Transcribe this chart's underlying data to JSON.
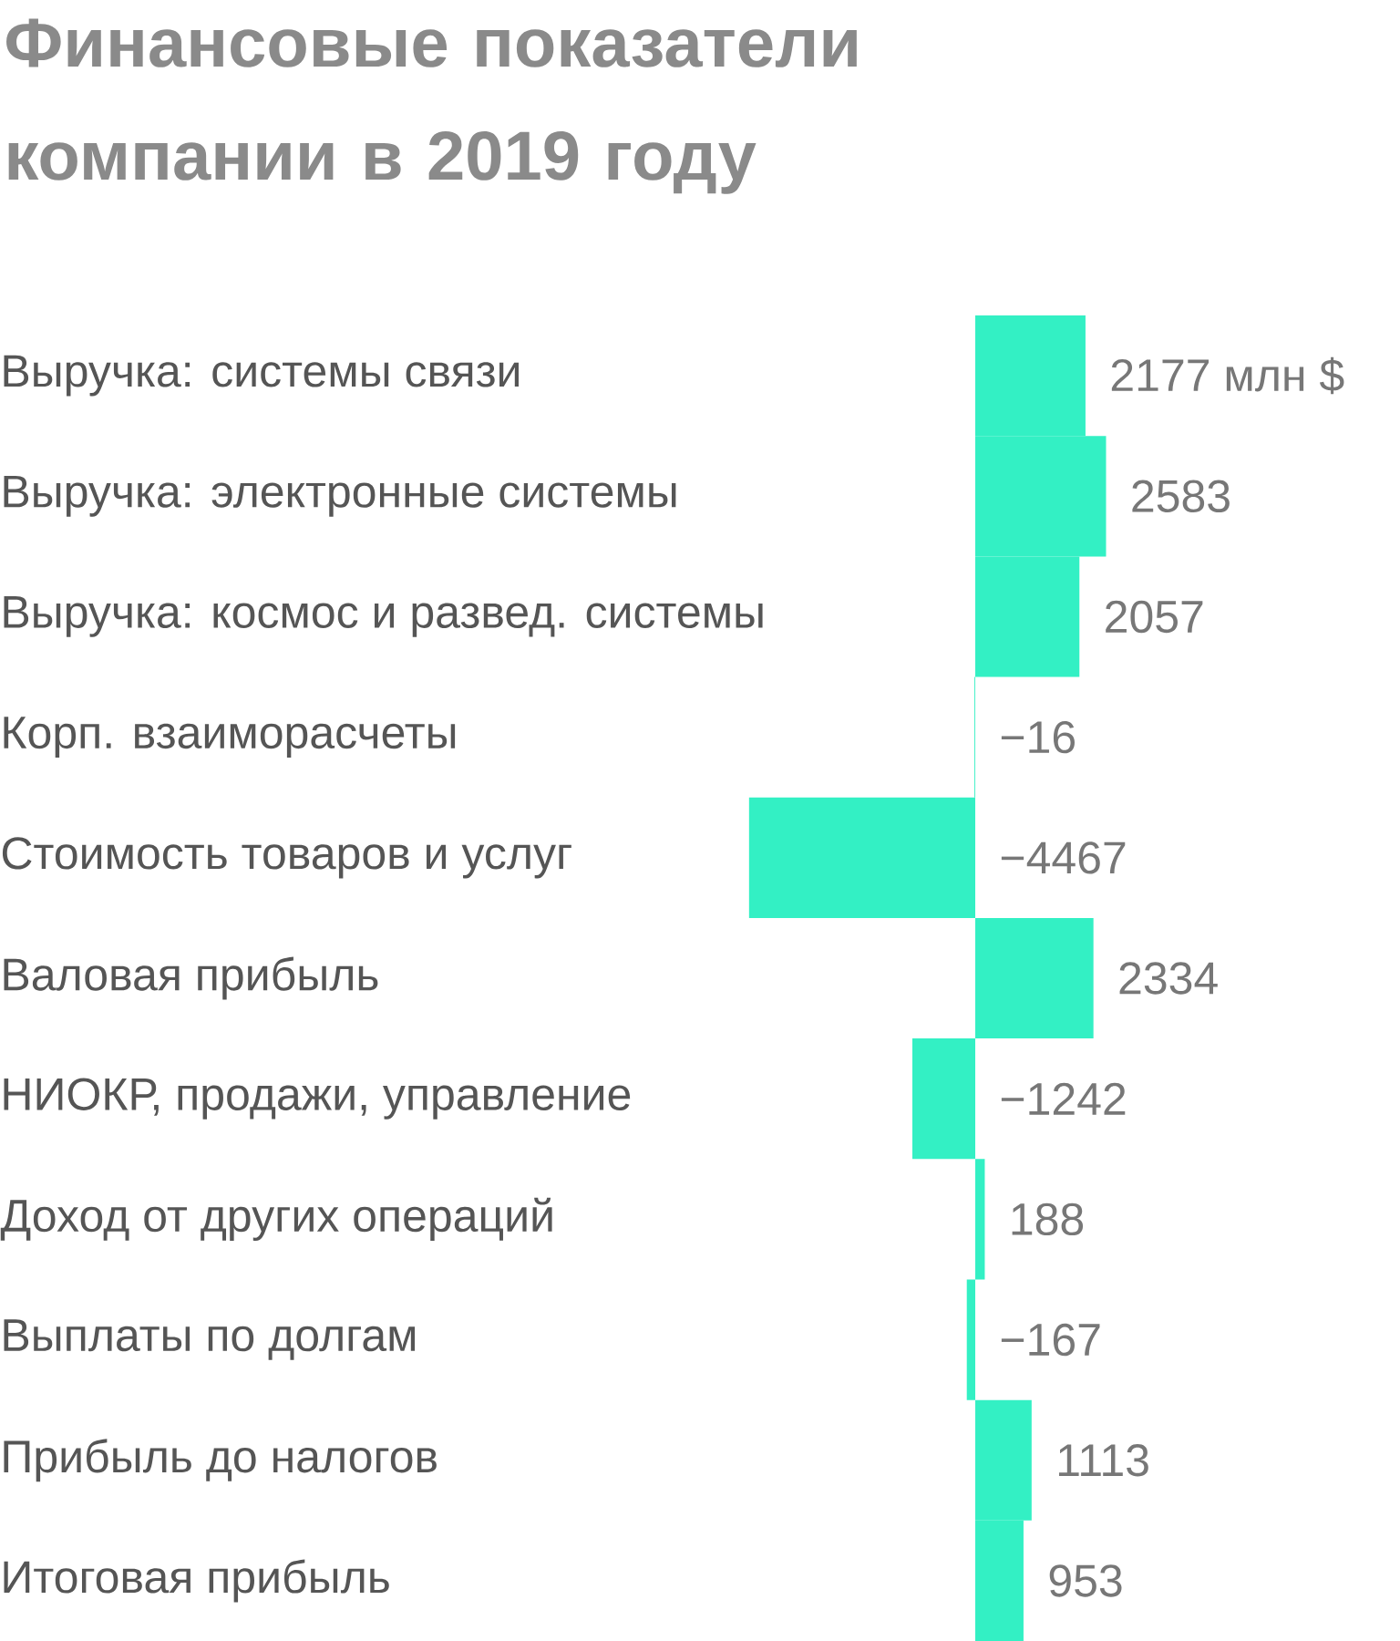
{
  "chart_data": {
    "type": "bar",
    "orientation": "horizontal",
    "title": "Финансовые показатели компании в 2019 году",
    "categories": [
      "Выручка: системы связи",
      "Выручка: электронные системы",
      "Выручка: космос и развед. системы",
      "Корп. взаиморасчеты",
      "Стоимость товаров и услуг",
      "Валовая прибыль",
      "НИОКР, продажи, управление",
      "Доход от других операций",
      "Выплаты по долгам",
      "Прибыль до налогов",
      "Итоговая прибыль"
    ],
    "values": [
      2177,
      2583,
      2057,
      -16,
      -4467,
      2334,
      -1242,
      188,
      -167,
      1113,
      953
    ],
    "value_labels": [
      "2177 млн $",
      "2583",
      "2057",
      "−16",
      "−4467",
      "2334",
      "−1242",
      "188",
      "−167",
      "1113",
      "953"
    ],
    "color": "#33f0c4"
  }
}
